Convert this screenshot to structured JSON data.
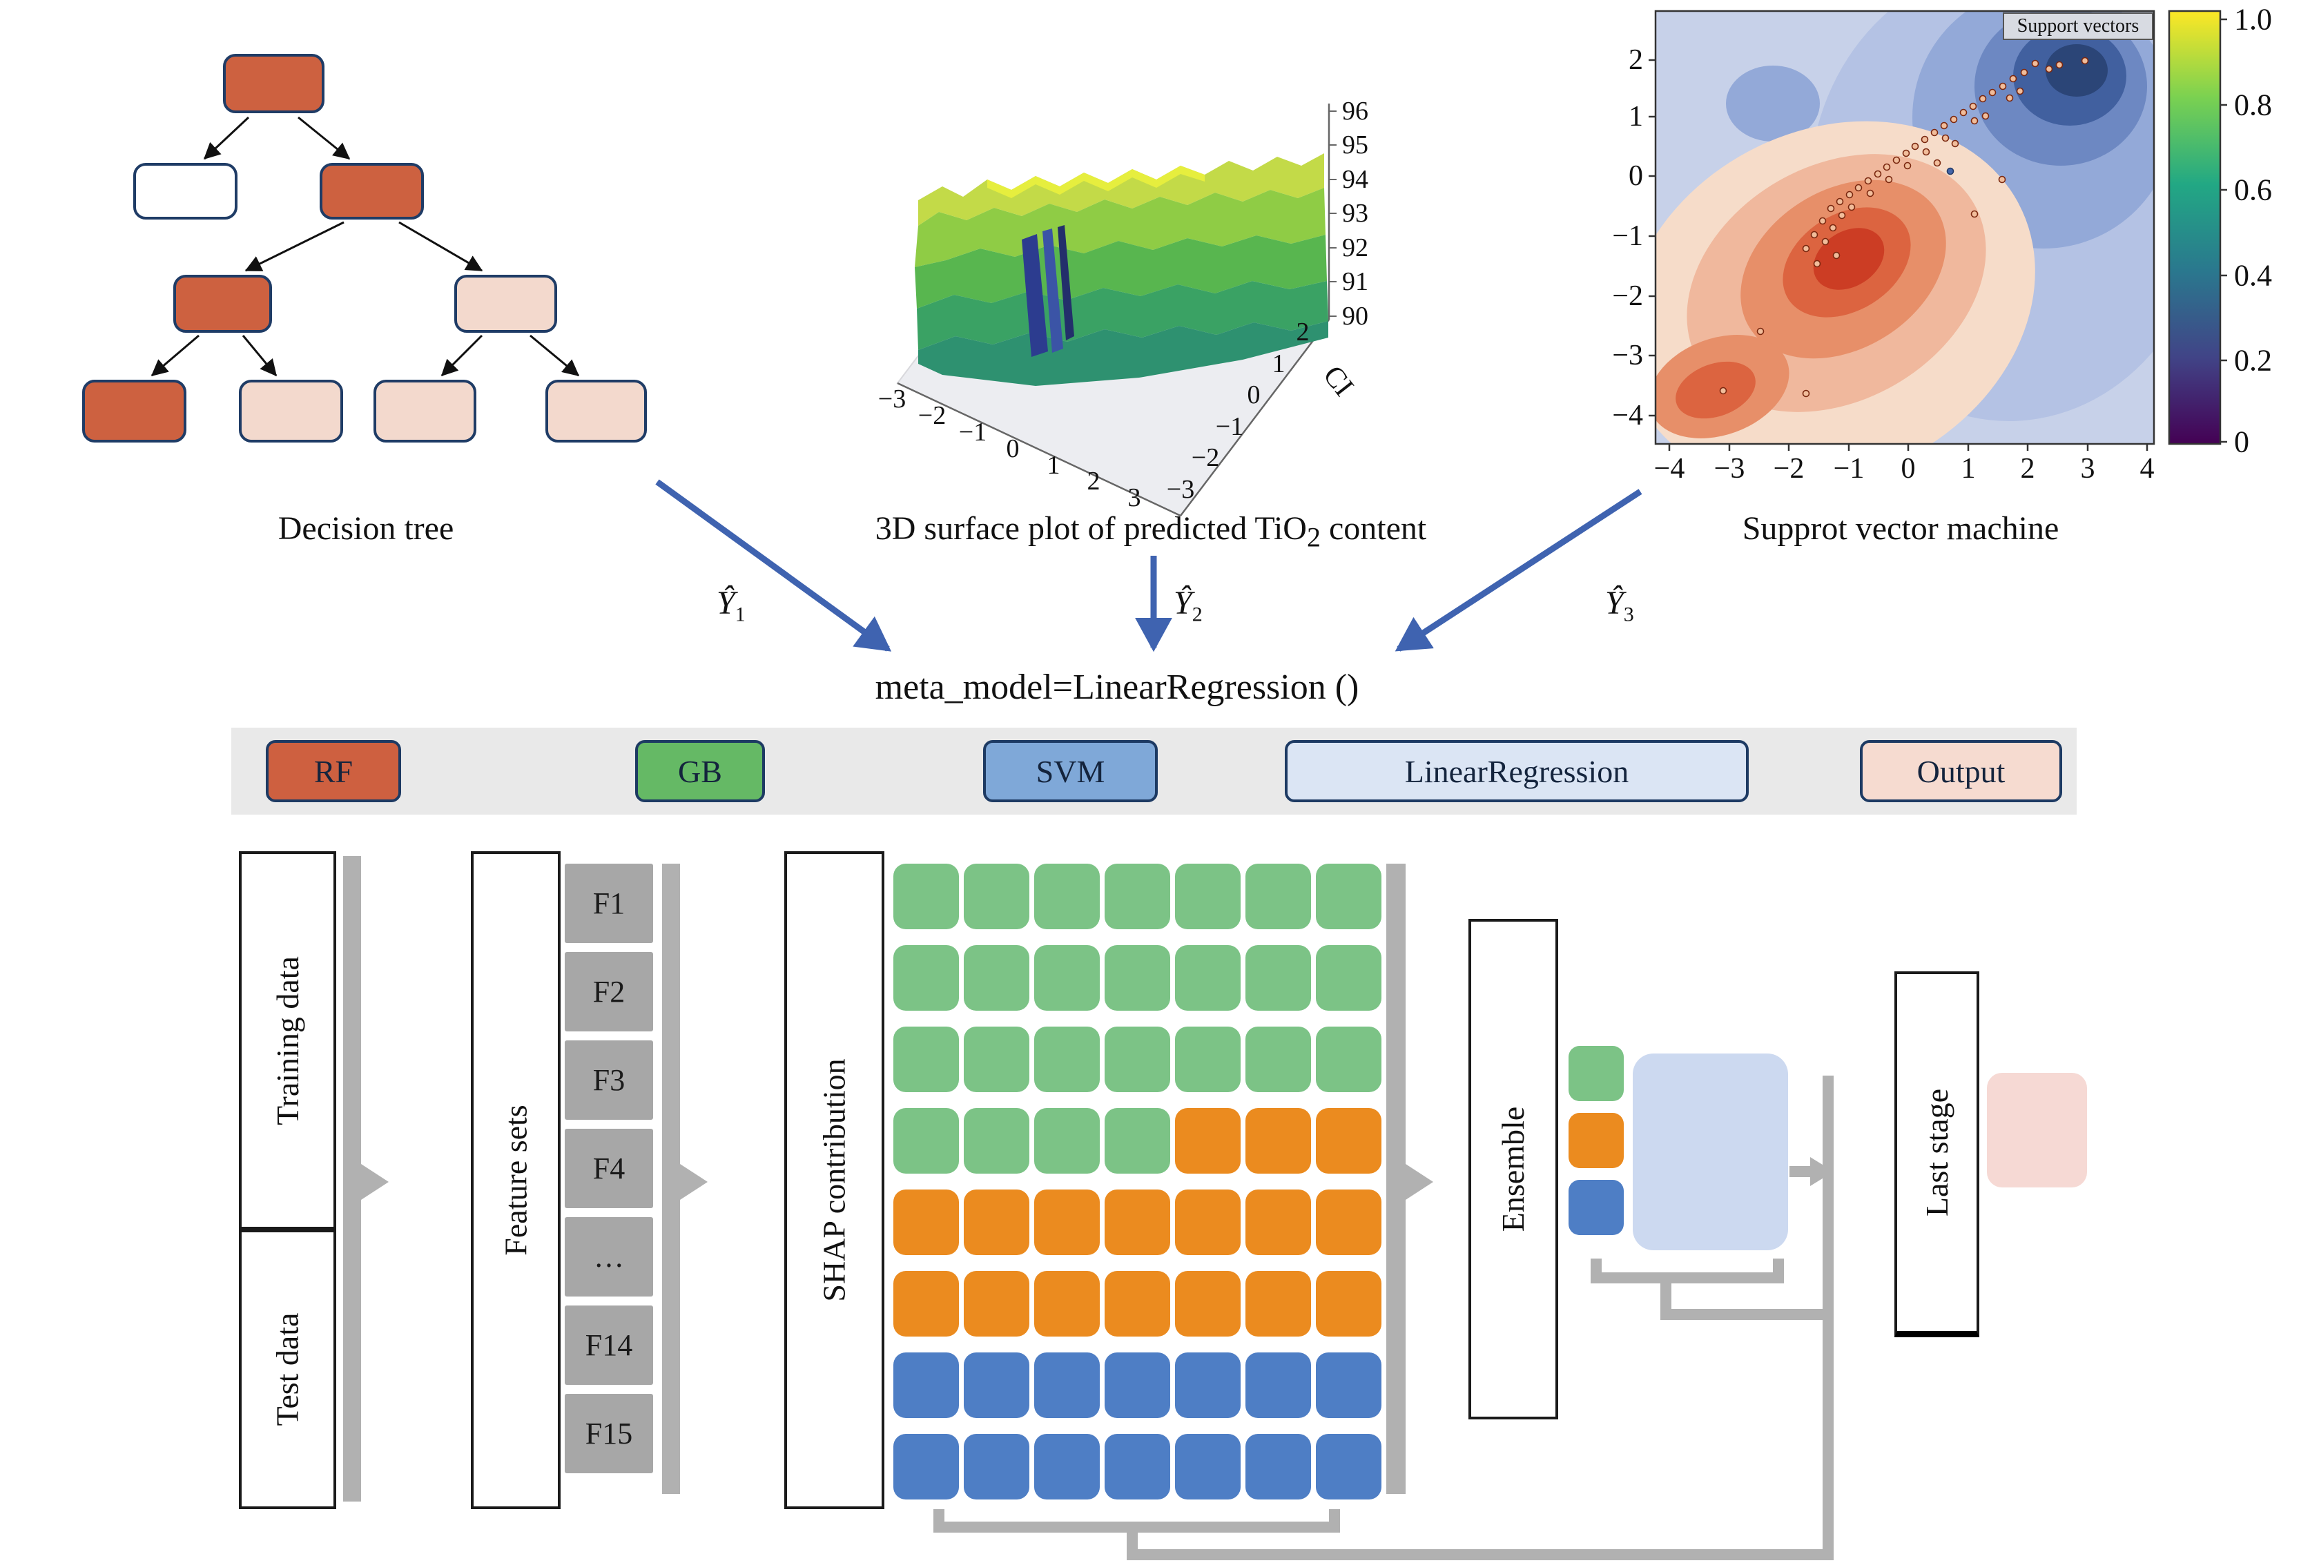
{
  "decision_tree": {
    "label": "Decision tree",
    "colors": {
      "orange": "#cd6140",
      "white": "#ffffff",
      "pink": "#f3d9cd",
      "border": "#1f3c66"
    }
  },
  "surface_plot": {
    "title": "3D surface plot of predicted TiO",
    "title_sub": "2",
    "title_tail": " content",
    "z_ticks": [
      "96",
      "95",
      "94",
      "93",
      "92",
      "91",
      "90"
    ],
    "x_ticks": [
      "−3",
      "−2",
      "−1",
      "0",
      "1",
      "2",
      "3"
    ],
    "y_ticks": [
      "2",
      "1",
      "0",
      "−1",
      "−2",
      "−3"
    ],
    "y_label": "CI"
  },
  "svm_plot": {
    "label": "Supprot vector machine",
    "legend": "Support vectors",
    "y_ticks": [
      "2",
      "1",
      "0",
      "−1",
      "−2",
      "−3",
      "−4"
    ],
    "x_ticks": [
      "−4",
      "−3",
      "−2",
      "−1",
      "0",
      "1",
      "2",
      "3",
      "4"
    ],
    "colorbar_ticks": [
      "1.0",
      "0.8",
      "0.6",
      "0.4",
      "0.2",
      "0"
    ]
  },
  "meta": {
    "model_text": "meta_model=LinearRegression ()",
    "yhats": [
      {
        "symbol": "Ŷ",
        "sub": "1"
      },
      {
        "symbol": "Ŷ",
        "sub": "2"
      },
      {
        "symbol": "Ŷ",
        "sub": "3"
      }
    ]
  },
  "legend_band": [
    {
      "label": "RF",
      "fill": "#ce6040"
    },
    {
      "label": "GB",
      "fill": "#65b965"
    },
    {
      "label": "SVM",
      "fill": "#7fa8d8"
    },
    {
      "label": "LinearRegression",
      "fill": "#dbe5f4"
    },
    {
      "label": "Output",
      "fill": "#f6dbd0"
    }
  ],
  "pipeline": {
    "training_data": "Training data",
    "test_data": "Test data",
    "feature_sets": "Feature sets",
    "features": [
      "F1",
      "F2",
      "F3",
      "F4",
      "…",
      "F14",
      "F15"
    ],
    "shap_label": "SHAP contribution",
    "ensemble_label": "Ensemble",
    "last_stage_label": "Last stage",
    "grid": {
      "colors": {
        "g": "#7cc386",
        "o": "#eb8b1f",
        "b": "#4e7ec5"
      },
      "rows": [
        "ggggggg",
        "ggggggg",
        "ggggggg",
        "ggggooo",
        "ooooooo",
        "ooooooo",
        "bbbbbbb",
        "bbbbbbb"
      ]
    },
    "ensemble_chips": [
      "g",
      "o",
      "b"
    ]
  }
}
